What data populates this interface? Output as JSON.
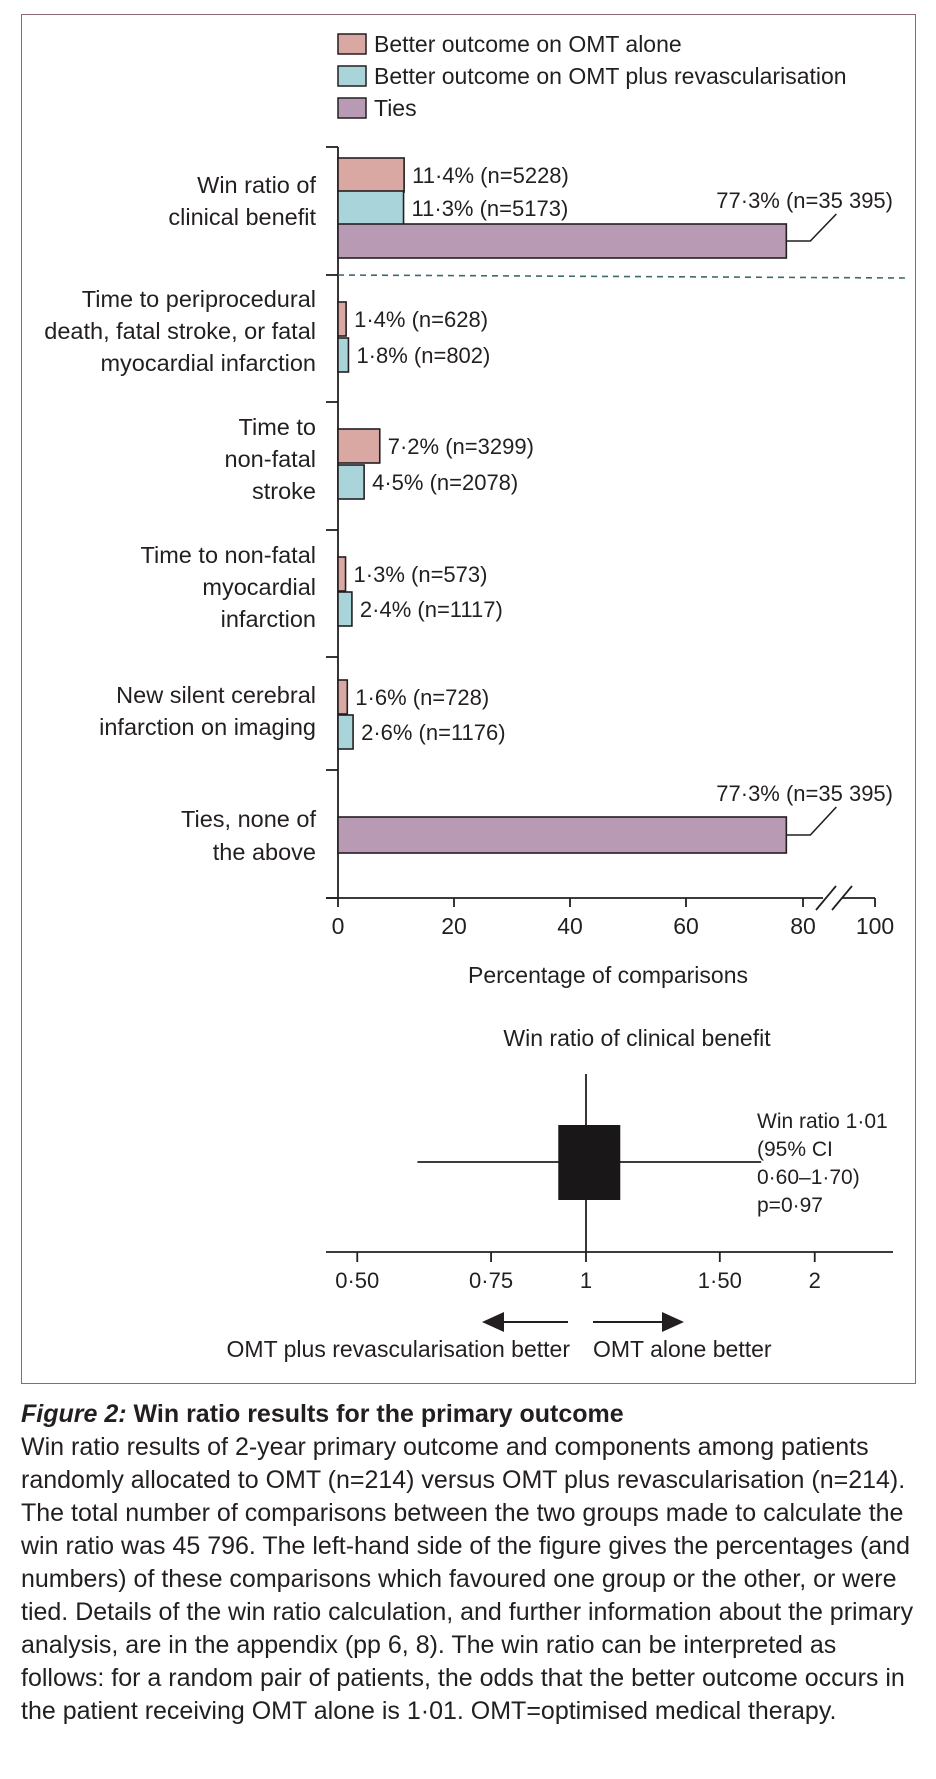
{
  "chart_data": [
    {
      "type": "bar",
      "orientation": "horizontal",
      "xlabel": "Percentage of comparisons",
      "xticks": [
        "0",
        "20",
        "40",
        "60",
        "80",
        "100"
      ],
      "xlim": [
        0,
        100
      ],
      "axis_break": "between 80 and 100",
      "legend": [
        "Better outcome on OMT alone",
        "Better outcome on OMT plus revascularisation",
        "Ties"
      ],
      "legend_position": "top",
      "colors": {
        "omt_alone": "#d9a8a2",
        "omt_revasc": "#a9d5da",
        "ties": "#b99ab5"
      },
      "groups": [
        {
          "label_lines": [
            "Win ratio of",
            "clinical benefit"
          ],
          "bars": [
            {
              "series": "omt_alone",
              "value": 11.4,
              "label": "11·4% (n=5228)"
            },
            {
              "series": "omt_revasc",
              "value": 11.3,
              "label": "11·3% (n=5173)"
            },
            {
              "series": "ties",
              "value": 77.3,
              "label": "77·3% (n=35 395)"
            }
          ]
        },
        {
          "label_lines": [
            "Time to periprocedural",
            "death, fatal stroke, or fatal",
            "myocardial infarction"
          ],
          "bars": [
            {
              "series": "omt_alone",
              "value": 1.4,
              "label": "1·4% (n=628)"
            },
            {
              "series": "omt_revasc",
              "value": 1.8,
              "label": "1·8% (n=802)"
            }
          ]
        },
        {
          "label_lines": [
            "Time to",
            "non-fatal",
            "stroke"
          ],
          "bars": [
            {
              "series": "omt_alone",
              "value": 7.2,
              "label": "7·2% (n=3299)"
            },
            {
              "series": "omt_revasc",
              "value": 4.5,
              "label": "4·5% (n=2078)"
            }
          ]
        },
        {
          "label_lines": [
            "Time to non-fatal",
            "myocardial",
            "infarction"
          ],
          "bars": [
            {
              "series": "omt_alone",
              "value": 1.3,
              "label": "1·3% (n=573)"
            },
            {
              "series": "omt_revasc",
              "value": 2.4,
              "label": "2·4% (n=1117)"
            }
          ]
        },
        {
          "label_lines": [
            "New silent cerebral",
            "infarction on imaging"
          ],
          "bars": [
            {
              "series": "omt_alone",
              "value": 1.6,
              "label": "1·6% (n=728)"
            },
            {
              "series": "omt_revasc",
              "value": 2.6,
              "label": "2·6% (n=1176)"
            }
          ]
        },
        {
          "label_lines": [
            "Ties, none of",
            "the above"
          ],
          "bars": [
            {
              "series": "ties",
              "value": 77.3,
              "label": "77·3% (n=35 395)"
            }
          ]
        }
      ]
    },
    {
      "type": "forest",
      "title": "Win ratio of clinical benefit",
      "xscale": "log",
      "xticks": [
        {
          "value": 0.5,
          "label": "0·50"
        },
        {
          "value": 0.75,
          "label": "0·75"
        },
        {
          "value": 1.0,
          "label": "1"
        },
        {
          "value": 1.5,
          "label": "1·50"
        },
        {
          "value": 2.0,
          "label": "2"
        }
      ],
      "reference_value": 1.0,
      "estimate": 1.01,
      "ci_low": 0.6,
      "ci_high": 1.7,
      "annotation_lines": [
        "Win ratio 1·01",
        "(95% CI",
        "0·60–1·70)",
        "p=0·97"
      ],
      "left_arrow_label": "OMT plus revascularisation better",
      "right_arrow_label": "OMT alone better"
    }
  ],
  "caption": {
    "figure_label": "Figure 2:",
    "title": "Win ratio results for the primary outcome",
    "body": "Win ratio results of 2-year primary outcome and components among patients randomly allocated to OMT (n=214) versus OMT plus revascularisation (n=214). The total number of comparisons between the two groups made to calculate the win ratio was 45 796. The left-hand side of the figure gives the percentages (and numbers) of these comparisons which favoured one group or the other, or were tied. Details of the win ratio calculation, and further information about the primary analysis, are in the appendix (pp 6, 8). The win ratio can be interpreted as follows: for a random pair of patients, the odds that the better outcome occurs in the patient receiving OMT alone is 1·01. OMT=optimised medical therapy."
  }
}
